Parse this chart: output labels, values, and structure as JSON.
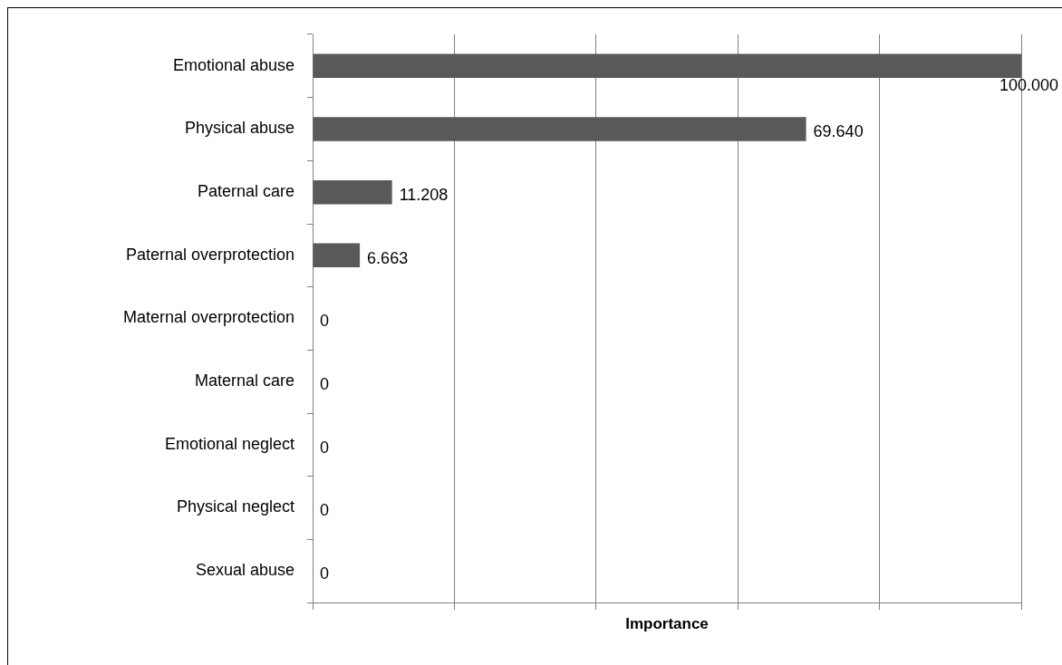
{
  "chart_data": {
    "type": "bar",
    "orientation": "horizontal",
    "xlabel": "Importance",
    "categories": [
      "Emotional abuse",
      "Physical abuse",
      "Paternal care",
      "Paternal overprotection",
      "Maternal overprotection",
      "Maternal care",
      "Emotional neglect",
      "Physical neglect",
      "Sexual abuse"
    ],
    "values": [
      100,
      69.64,
      11.208,
      6.663,
      0,
      0,
      0,
      0,
      0
    ],
    "value_labels": [
      "100.000",
      "69.640",
      "11.208",
      "6.663",
      "0",
      "0",
      "0",
      "0",
      "0"
    ],
    "color": "#595959",
    "xlim": [
      0,
      100
    ],
    "xticks": [
      {
        "value": 0,
        "label": null
      },
      {
        "value": 20,
        "label": null
      },
      {
        "value": 40,
        "label": null
      },
      {
        "value": 60,
        "label": null
      },
      {
        "value": 80,
        "label": null
      },
      {
        "value": 100,
        "label": null
      }
    ],
    "grid": "x",
    "legend": false,
    "tick_labels": "y"
  }
}
